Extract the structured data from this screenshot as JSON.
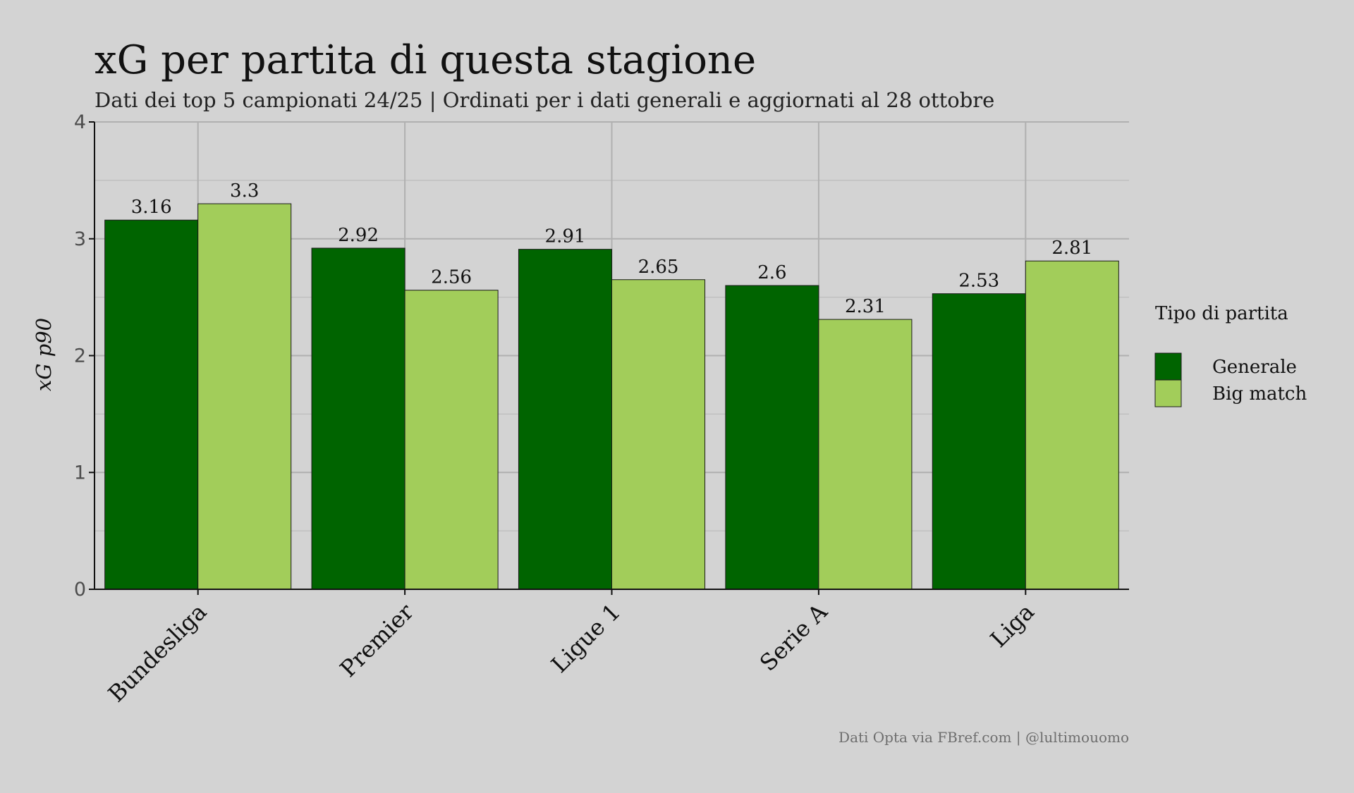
{
  "chart_data": {
    "type": "bar",
    "title": "xG per partita di questa stagione",
    "subtitle": "Dati dei top 5 campionati 24/25 | Ordinati per i dati generali e aggiornati al 28 ottobre",
    "xlabel": "",
    "ylabel": "xG p90",
    "ylim": [
      0,
      4
    ],
    "yticks": [
      0,
      1,
      2,
      3,
      4
    ],
    "grid": true,
    "categories": [
      "Bundesliga",
      "Premier",
      "Ligue 1",
      "Serie A",
      "Liga"
    ],
    "series": [
      {
        "name": "Generale",
        "color": "#006400",
        "values": [
          3.16,
          2.92,
          2.91,
          2.6,
          2.53
        ],
        "labels": [
          "3.16",
          "2.92",
          "2.91",
          "2.6",
          "2.53"
        ]
      },
      {
        "name": "Big match",
        "color": "#a2cd5a",
        "values": [
          3.3,
          2.56,
          2.65,
          2.31,
          2.81
        ],
        "labels": [
          "3.3",
          "2.56",
          "2.65",
          "2.31",
          "2.81"
        ]
      }
    ],
    "legend_title": "Tipo di partita",
    "legend_position": "right",
    "caption": "Dati Opta via FBref.com | @lultimouomo"
  }
}
